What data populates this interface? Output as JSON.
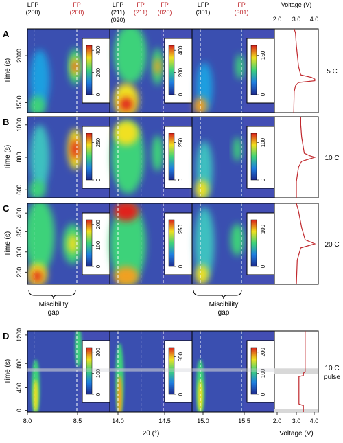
{
  "columns": [
    {
      "lines": [
        "LFP",
        "(200)"
      ],
      "color": "#000000"
    },
    {
      "lines": [
        "FP",
        "(200)"
      ],
      "color": "#c0282d"
    },
    {
      "lines": [
        "LFP",
        "(211)",
        "(020)"
      ],
      "color": "#000000"
    },
    {
      "lines": [
        "FP",
        "(211)"
      ],
      "color": "#c0282d"
    },
    {
      "lines": [
        "FP",
        "(020)"
      ],
      "color": "#c0282d"
    },
    {
      "lines": [
        "LFP",
        "(301)"
      ],
      "color": "#000000"
    },
    {
      "lines": [
        "FP",
        "(301)"
      ],
      "color": "#c0282d"
    }
  ],
  "voltage_header": "Voltage (V)",
  "voltage_ticks": [
    "2.0",
    "3.0",
    "4.0"
  ],
  "rows": [
    {
      "letter": "A",
      "rate": [
        "5 C"
      ],
      "y_ticks": [
        "2000",
        "1500"
      ],
      "colorbars": [
        [
          "0",
          "200",
          "400"
        ],
        [
          "0",
          "200",
          "400"
        ],
        [
          "0",
          "150"
        ]
      ]
    },
    {
      "letter": "B",
      "rate": [
        "10 C"
      ],
      "y_ticks": [
        "1000",
        "800",
        "600"
      ],
      "colorbars": [
        [
          "0",
          "250"
        ],
        [
          "0",
          "250"
        ],
        [
          "0",
          "100"
        ]
      ]
    },
    {
      "letter": "C",
      "rate": [
        "20 C"
      ],
      "y_ticks": [
        "400",
        "350",
        "300",
        "250"
      ],
      "colorbars": [
        [
          "0",
          "100",
          "200"
        ],
        [
          "0",
          "250"
        ],
        [
          "0",
          "100"
        ]
      ]
    },
    {
      "letter": "D",
      "rate": [
        "10 C",
        "pulse"
      ],
      "y_ticks": [
        "1200",
        "800",
        "400",
        "0"
      ],
      "colorbars": [
        [
          "0",
          "100",
          "200"
        ],
        [
          "0",
          "500"
        ],
        [
          "0",
          "100",
          "200"
        ]
      ]
    }
  ],
  "y_axis_label": "Time (s)",
  "miscibility": [
    {
      "lines": [
        "Miscibility",
        "gap"
      ]
    },
    {
      "lines": [
        "Miscibility",
        "gap"
      ]
    }
  ],
  "x_ticks": [
    [
      "8.0",
      "8.5"
    ],
    [
      "14.0",
      "14.5"
    ],
    [
      "15.0",
      "15.5"
    ]
  ],
  "x_label": "2θ (°)",
  "voltage_x_ticks": [
    "2.0",
    "3.0",
    "4.0"
  ],
  "voltage_x_label": "Voltage (V)",
  "colors": {
    "background": "#3a4fb0",
    "hot": "#e0241f",
    "curve": "#c0282d"
  }
}
